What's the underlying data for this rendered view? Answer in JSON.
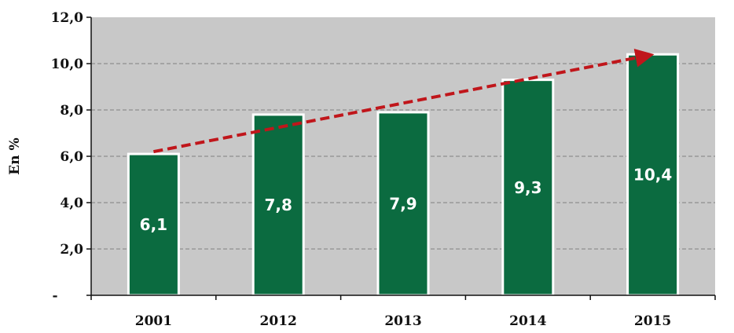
{
  "chart_data": {
    "type": "bar",
    "title": "",
    "xlabel": "",
    "ylabel": "En %",
    "categories": [
      "2001",
      "2012",
      "2013",
      "2014",
      "2015"
    ],
    "values": [
      6.1,
      7.8,
      7.9,
      9.3,
      10.4
    ],
    "value_labels": [
      "6,1",
      "7,8",
      "7,9",
      "9,3",
      "10,4"
    ],
    "ylim": [
      0,
      12
    ],
    "y_ticks": [
      0,
      2,
      4,
      6,
      8,
      10,
      12
    ],
    "y_tick_labels": [
      "-",
      "2,0",
      "4,0",
      "6,0",
      "8,0",
      "10,0",
      "12,0"
    ],
    "grid": "horizontal dashed",
    "legend": "none",
    "trend_arrow": {
      "from_category": "2001",
      "from_value": 6.2,
      "to_category": "2015",
      "to_value": 10.35,
      "style": "dashed"
    },
    "colors": {
      "bar": "#0b6b40",
      "bar_border": "#ffffff",
      "plot_background": "#c8c8c8",
      "trend": "#c0161b",
      "grid": "#7f7f7f"
    }
  }
}
